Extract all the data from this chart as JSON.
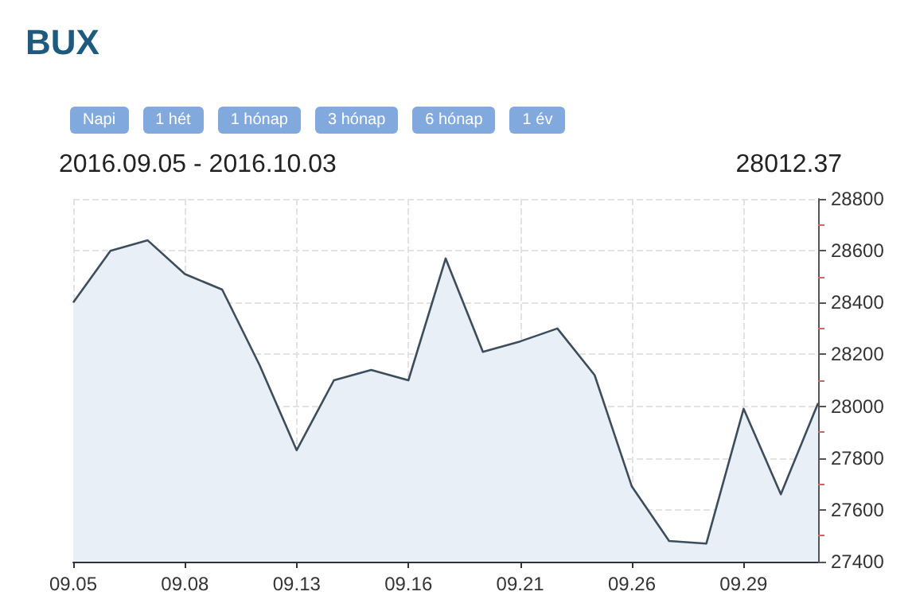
{
  "chart_data": {
    "type": "area",
    "title": "BUX",
    "subtitle": "2016.09.05 - 2016.10.03",
    "annotations": [
      "28012.37",
      "Napi",
      "1 hét",
      "1 hónap",
      "3 hónap",
      "6 hónap",
      "1 év"
    ],
    "categories": [
      "09.05",
      null,
      null,
      "09.08",
      null,
      null,
      "09.13",
      null,
      null,
      "09.16",
      null,
      null,
      "09.21",
      null,
      null,
      "09.26",
      null,
      null,
      "09.29",
      null,
      null
    ],
    "series": [
      {
        "color": "#3d4d5c",
        "values": [
          28400,
          28600,
          28640,
          28510,
          28450,
          28160,
          27830,
          28100,
          28140,
          28100,
          28570,
          28210,
          28250,
          28300,
          28120,
          27690,
          27480,
          27470,
          27990,
          27660,
          28012
        ]
      }
    ],
    "ylim": [
      27400,
      28800
    ],
    "yticks": [
      27400,
      27600,
      27800,
      28000,
      28200,
      28400,
      28600,
      28800
    ],
    "grid": true,
    "marker": "none",
    "line_style": "solid"
  }
}
